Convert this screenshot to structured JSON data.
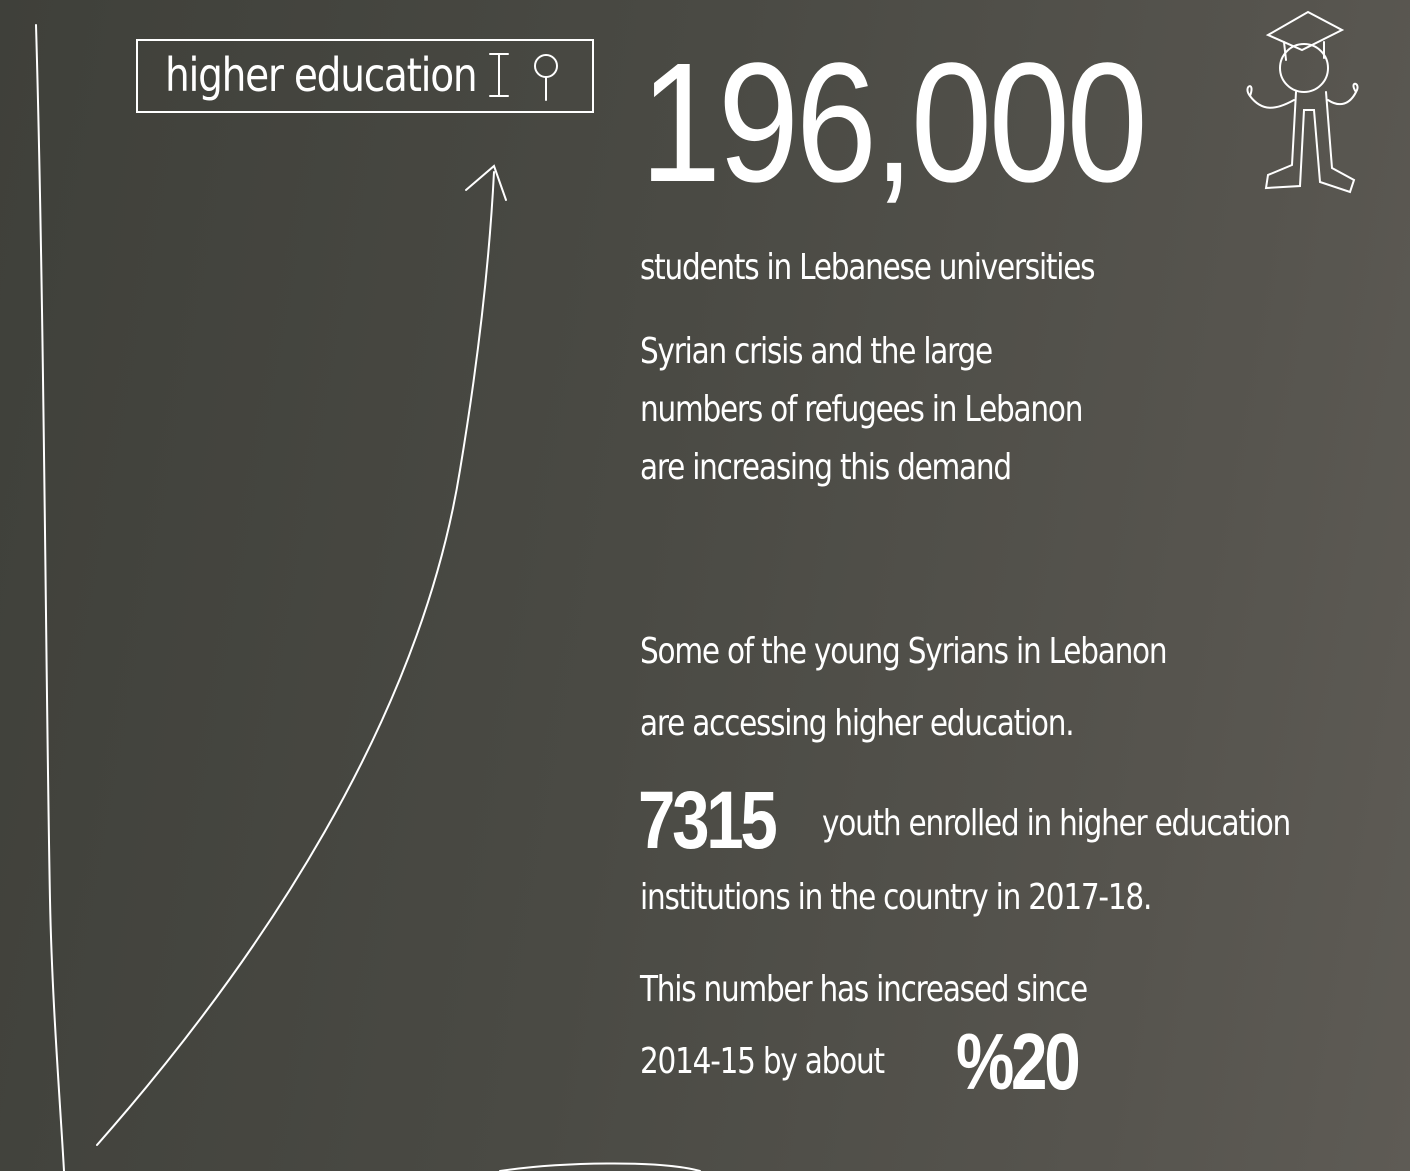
{
  "search": {
    "query": "higher education"
  },
  "headline": {
    "number": "196,000",
    "caption": "students in Lebanese universities"
  },
  "crisis": {
    "lines": [
      "Syrian crisis and the large",
      "numbers of refugees in Lebanon",
      "are increasing this demand"
    ]
  },
  "access": {
    "lines": [
      "Some of the young Syrians in Lebanon",
      "are accessing higher education."
    ]
  },
  "enrolment": {
    "number": "7315",
    "line1": "youth enrolled in higher education",
    "line2": "institutions in the country in 2017-18."
  },
  "growth": {
    "line1": "This number has increased since",
    "line2": "2014-15 by about",
    "number": "%20"
  }
}
